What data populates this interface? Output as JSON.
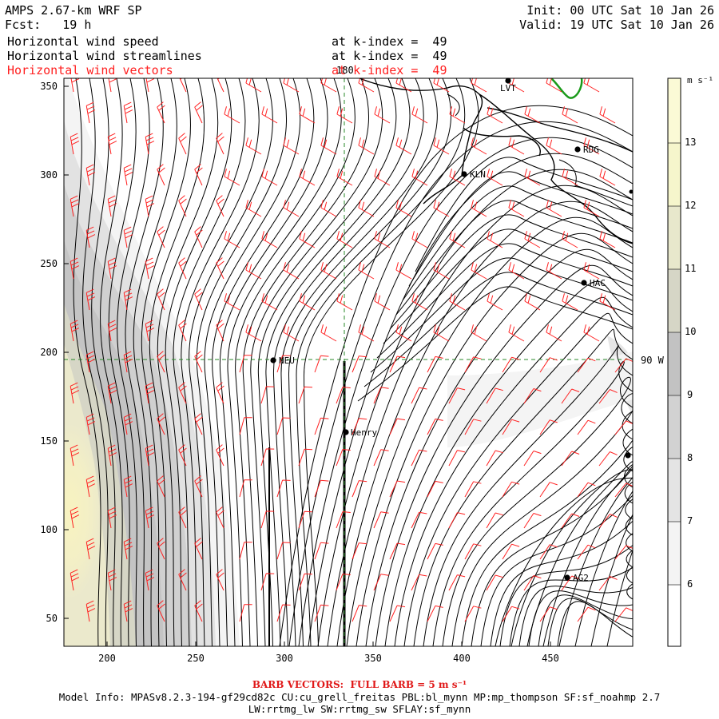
{
  "header": {
    "title": "AMPS 2.67-km WRF SP",
    "fcst_label": "Fcst:",
    "fcst_value": "19 h",
    "init": "Init: 00 UTC Sat 10 Jan 26",
    "valid": "Valid: 19 UTC Sat 10 Jan 26",
    "fields": [
      {
        "name": "Horizontal wind speed",
        "level": "at k-index =  49",
        "color": "#000000"
      },
      {
        "name": "Horizontal wind streamlines",
        "level": "at k-index =  49",
        "color": "#000000"
      },
      {
        "name": "Horizontal wind vectors",
        "level": "at k-index =  49",
        "color": "#ff2020"
      }
    ]
  },
  "map": {
    "x_ticks": [
      "200",
      "250",
      "300",
      "350",
      "400",
      "450"
    ],
    "y_ticks": [
      "50",
      "100",
      "150",
      "200",
      "250",
      "300",
      "350"
    ],
    "grid_labels": {
      "meridian_top": "180",
      "parallel_right": "90 W"
    },
    "stations": [
      {
        "id": "LVT",
        "label": "LVT"
      },
      {
        "id": "RDG",
        "label": "RDG"
      },
      {
        "id": "KLN",
        "label": "KLN"
      },
      {
        "id": "HAC",
        "label": "HAC"
      },
      {
        "id": "NEU",
        "label": "NEU"
      },
      {
        "id": "HENRY",
        "label": "Henry"
      },
      {
        "id": "AG2",
        "label": "AG2"
      },
      {
        "id": "E1",
        "label": ""
      },
      {
        "id": "E2",
        "label": ""
      }
    ],
    "colors": {
      "barb": "#ff2020",
      "streamline": "#000000",
      "coast": "#000000",
      "green_contour": "#1a9a1a",
      "grid_line": "#2a8a2a"
    }
  },
  "colorbar": {
    "unit": "m s⁻¹",
    "labels": [
      "6",
      "7",
      "8",
      "9",
      "10",
      "11",
      "12",
      "13"
    ],
    "bins": [
      {
        "color": "#ffffff"
      },
      {
        "color": "#f4f4f4"
      },
      {
        "color": "#e4e4e4"
      },
      {
        "color": "#d2d2d2"
      },
      {
        "color": "#c2c2c2"
      },
      {
        "color": "#d6d6c6"
      },
      {
        "color": "#e8e8cc"
      },
      {
        "color": "#f6f6cc"
      },
      {
        "color": "#fbfad6"
      }
    ]
  },
  "footer": {
    "barb_note": "BARB VECTORS:  FULL BARB = 5 m s⁻¹",
    "model_info": "Model Info: MPASv8.2.3-194-gf29cd82c CU:cu_grell_freitas PBL:bl_mynn MP:mp_thompson SF:sf_noahmp 2.7",
    "model_info2": "LW:rrtmg_lw SW:rrtmg_sw SFLAY:sf_mynn"
  }
}
